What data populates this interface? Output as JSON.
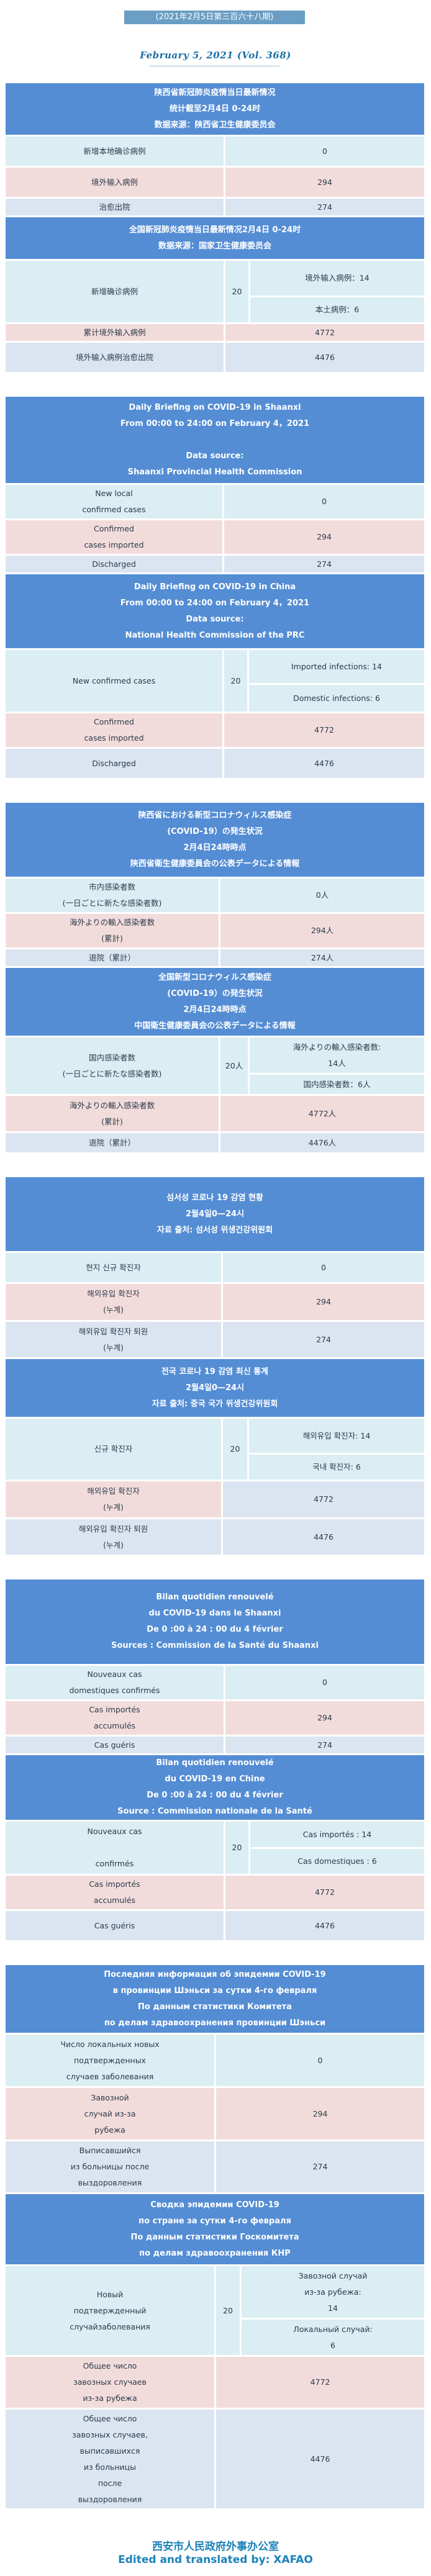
{
  "issue": "(2021年2月5日第三百六十八期)",
  "subtitle": "February 5, 2021 (Vol. 368)",
  "colors": {
    "header": "#548dd4",
    "row_blue": "#daeef3",
    "row_pink": "#f2dcdb",
    "row_gray": "#dbe5f1",
    "issue_badge": "#6a9ec4",
    "accent_text": "#1b82b8"
  },
  "sections": [
    {
      "header": [
        "陕西省新冠肺炎疫情当日最新情况",
        "统计截至2月4日 0-24时",
        "数据来源：陕西省卫生健康委员会"
      ],
      "rows": [
        {
          "label": "新增本地确诊病例",
          "value": "0",
          "tone": "blue"
        },
        {
          "label": "境外输入病例",
          "value": "294",
          "tone": "pink"
        },
        {
          "label": "治愈出院",
          "value": "274",
          "tone": "gray"
        }
      ]
    },
    {
      "header": [
        "全国新冠肺炎疫情当日最新情况2月4日 0-24时",
        "数据来源：国家卫生健康委员会"
      ],
      "rows": [
        {
          "label": "新增确诊病例",
          "value": "20",
          "tone": "blue",
          "sub": [
            "境外输入病例：14",
            "本土病例：6"
          ]
        },
        {
          "label": "累计境外输入病例",
          "value": "4772",
          "tone": "pink"
        },
        {
          "label": "境外输入病例治愈出院",
          "value": "4476",
          "tone": "gray"
        }
      ]
    },
    {
      "header": [
        "Daily Briefing on COVID-19 in Shaanxi",
        "From 00:00 to 24:00 on February 4，2021",
        "",
        "Data source:",
        "Shaanxi Provincial Health Commission"
      ],
      "rows": [
        {
          "label": "New local\nconfirmed cases",
          "value": "0",
          "tone": "blue"
        },
        {
          "label": "Confirmed\ncases imported",
          "value": "294",
          "tone": "pink"
        },
        {
          "label": "Discharged",
          "value": "274",
          "tone": "gray"
        }
      ]
    },
    {
      "header": [
        "Daily Briefing on COVID-19 in China",
        "From 00:00 to 24:00 on  February 4，2021",
        "Data source:",
        "National Health Commission of the PRC"
      ],
      "rows": [
        {
          "label": "New confirmed cases",
          "value": "20",
          "tone": "blue",
          "sub": [
            "Imported infections: 14",
            "Domestic infections: 6"
          ]
        },
        {
          "label": "Confirmed\ncases imported",
          "value": "4772",
          "tone": "pink"
        },
        {
          "label": "Discharged",
          "value": "4476",
          "tone": "gray"
        }
      ]
    },
    {
      "header": [
        "陝西省における新型コロナウィルス感染症",
        "(COVID-19）の発生状況",
        "2月4日24時時点",
        "陝西省衛生健康委員会の公表データによる情報"
      ],
      "rows": [
        {
          "label": "市内感染者数\n(一日ごとに新たな感染者数)",
          "value": "0人",
          "tone": "blue"
        },
        {
          "label": "海外よりの輸入感染者数\n(累計)",
          "value": "294人",
          "tone": "pink"
        },
        {
          "label": "退院（累計）",
          "value": "274人",
          "tone": "gray"
        }
      ]
    },
    {
      "header": [
        "全国新型コロナウィルス感染症",
        "(COVID-19）の発生状況",
        "2月4日24時時点",
        "中国衛生健康委員会の公表データによる情報"
      ],
      "rows": [
        {
          "label": "国内感染者数\n(一日ごとに新たな感染者数)",
          "value": "20人",
          "tone": "blue",
          "sub": [
            "海外よりの輸入感染者数:\n14人",
            "国内感染者数：6人"
          ]
        },
        {
          "label": "海外よりの輸入感染者数\n(累計)",
          "value": "4772人",
          "tone": "pink"
        },
        {
          "label": "退院（累計）",
          "value": "4476人",
          "tone": "gray"
        }
      ]
    },
    {
      "header": [
        "섬서성 코로나 19 감염 현황",
        "2월4일0—24시",
        "자료 출처: 섬서성 위생건강위원회"
      ],
      "rows": [
        {
          "label": "현지 신규 확진자",
          "value": "0",
          "tone": "blue"
        },
        {
          "label": "해외유입 확진자\n(누계)",
          "value": "294",
          "tone": "pink"
        },
        {
          "label": "해외유입 확진자 퇴원\n(누계)",
          "value": "274",
          "tone": "gray"
        }
      ]
    },
    {
      "header": [
        "전국 코로나 19 감염 최신 통계",
        "2월4일0—24시",
        "자료 출처: 중국 국가 위생건강위원회"
      ],
      "rows": [
        {
          "label": "신규 확진자",
          "value": "20",
          "tone": "blue",
          "sub": [
            "해외유입 확진자:  14",
            "국내 확진자:  6"
          ]
        },
        {
          "label": "해외유입 확진자\n(누계)",
          "value": "4772",
          "tone": "pink",
          "value_tone": "gray"
        },
        {
          "label": "해외유입 확진자 퇴원\n(누계)",
          "value": "4476",
          "tone": "gray"
        }
      ]
    },
    {
      "header": [
        "Bilan quotidien renouvelé",
        "du COVID-19 dans le Shaanxi",
        "De 0 :00 à 24 : 00 du 4 février",
        "Sources : Commission de la Santé du Shaanxi"
      ],
      "rows": [
        {
          "label": "Nouveaux cas\ndomestiques confirmés",
          "value": "0",
          "tone": "blue"
        },
        {
          "label": "Cas importés\naccumulés",
          "value": "294",
          "tone": "pink"
        },
        {
          "label": "Cas guéris",
          "value": "274",
          "tone": "gray"
        }
      ]
    },
    {
      "header": [
        "Bilan quotidien renouvelé",
        "du COVID-19 en Chine",
        "De 0 :00 à 24 : 00 du 4 février",
        "Source : Commission nationale de la Santé"
      ],
      "rows": [
        {
          "label": "Nouveaux cas\n\nconfirmés",
          "value": "20",
          "tone": "blue",
          "sub": [
            "Cas importés :  14",
            "Cas domestiques : 6"
          ]
        },
        {
          "label": "Cas importés\naccumulés",
          "value": "4772",
          "tone": "pink"
        },
        {
          "label": "Cas guéris",
          "value": "4476",
          "tone": "gray"
        }
      ]
    },
    {
      "header": [
        "Последняя информация об эпидемии COVID-19",
        "в провинции Шэньси за сутки 4-го февраля",
        "По данным статистики Комитета",
        "по делам здравоохранения провинции Шэньси"
      ],
      "rows": [
        {
          "label": "Число локальных новых\nподтвержденных\nслучаев заболевания",
          "value": "0",
          "tone": "blue"
        },
        {
          "label": "Завозной\nслучай из-за\nрубежа",
          "value": "294",
          "tone": "pink"
        },
        {
          "label": "Выписавшийся\nиз больницы после\nвыздоровления",
          "value": "274",
          "tone": "gray"
        }
      ]
    },
    {
      "header": [
        "Сводка эпидемии COVID-19",
        "по стране за сутки 4-го февраля",
        "По данным статистики Госкомитета",
        "по делам здравоохранения КНР"
      ],
      "rows": [
        {
          "label": "Новый\nподтвержденный\nслучайзаболевания",
          "value": "20",
          "tone": "blue",
          "sub": [
            "Завозной случай\nиз-за рубежа:\n14",
            "Локальный случай:\n6"
          ]
        },
        {
          "label": "Общее число\nзавозных случаев\nиз-за рубежа",
          "value": "4772",
          "tone": "pink"
        },
        {
          "label": "Общее число\nзавозных случаев,\nвыписавшихся\nиз больницы\nпосле\nвыздоровления",
          "value": "4476",
          "tone": "gray"
        }
      ]
    }
  ],
  "footer": {
    "org": "西安市人民政府外事办公室",
    "credit": "Edited and translated by: XAFAO"
  }
}
